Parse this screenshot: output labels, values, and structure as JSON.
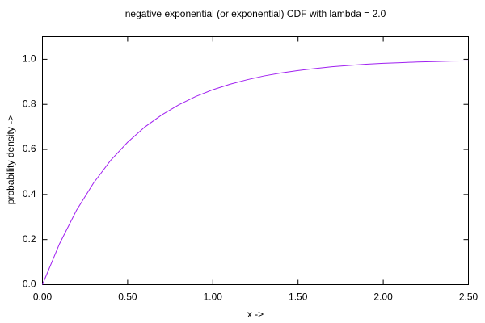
{
  "chart_data": {
    "type": "line",
    "title": "negative exponential (or exponential) CDF with lambda = 2.0",
    "x_label": "x ->",
    "y_label": "probability density ->",
    "x": [
      0,
      0.1,
      0.2,
      0.3,
      0.4,
      0.5,
      0.6,
      0.7,
      0.8,
      0.9,
      1.0,
      1.1,
      1.2,
      1.3,
      1.4,
      1.5,
      1.6,
      1.7,
      1.8,
      1.9,
      2.0,
      2.1,
      2.2,
      2.3,
      2.4,
      2.5
    ],
    "series": [
      {
        "color": "#a020f0",
        "values": [
          0,
          0.181,
          0.33,
          0.451,
          0.551,
          0.632,
          0.699,
          0.753,
          0.798,
          0.835,
          0.865,
          0.889,
          0.909,
          0.926,
          0.939,
          0.95,
          0.959,
          0.967,
          0.973,
          0.978,
          0.982,
          0.985,
          0.988,
          0.99,
          0.992,
          0.993
        ]
      }
    ],
    "xlim": [
      0,
      2.5
    ],
    "ylim": [
      0,
      1.1
    ],
    "xticks": [
      {
        "value": 0,
        "label": "0.00"
      },
      {
        "value": 0.5,
        "label": "0.50"
      },
      {
        "value": 1,
        "label": "1.00"
      },
      {
        "value": 1.5,
        "label": "1.50"
      },
      {
        "value": 2,
        "label": "2.00"
      },
      {
        "value": 2.5,
        "label": "2.50"
      }
    ],
    "yticks": [
      {
        "value": 0,
        "label": "0.0"
      },
      0.2,
      0.4,
      0.6,
      0.8,
      {
        "value": 1,
        "label": "1.0"
      }
    ],
    "grid": false
  }
}
